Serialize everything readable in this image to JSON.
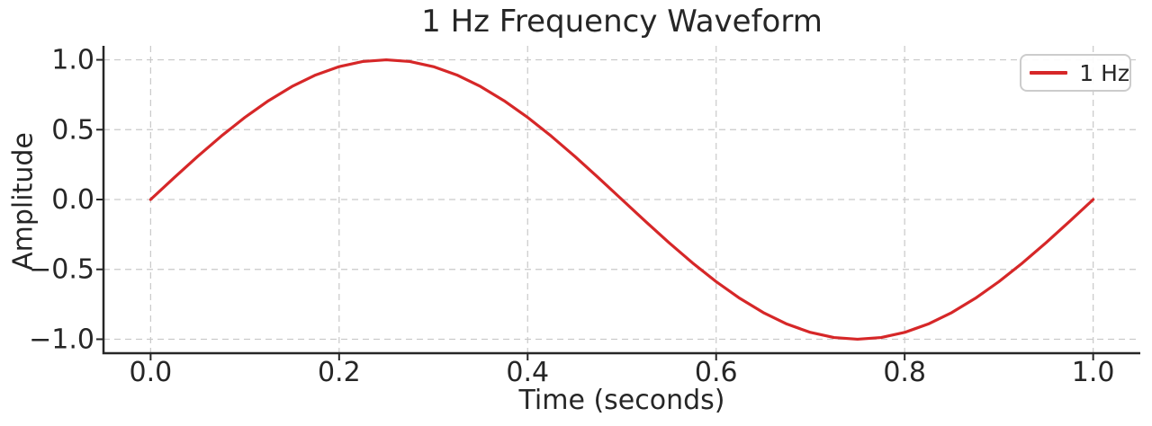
{
  "chart_data": {
    "type": "line",
    "title": "1 Hz Frequency Waveform",
    "xlabel": "Time (seconds)",
    "ylabel": "Amplitude",
    "xlim": [
      -0.05,
      1.05
    ],
    "ylim": [
      -1.1,
      1.1
    ],
    "grid": true,
    "grid_style": "dashed",
    "x_ticks": {
      "values": [
        0.0,
        0.2,
        0.4,
        0.6,
        0.8,
        1.0
      ],
      "labels": [
        "0.0",
        "0.2",
        "0.4",
        "0.6",
        "0.8",
        "1.0"
      ]
    },
    "y_ticks": {
      "values": [
        1.0,
        0.5,
        0.0,
        -0.5,
        -1.0
      ],
      "labels": [
        "1.0",
        "0.5",
        "0.0",
        "−0.5",
        "−1.0"
      ]
    },
    "legend": {
      "position": "upper right",
      "entries": [
        {
          "label": "1 Hz",
          "color": "#d62728"
        }
      ]
    },
    "series": [
      {
        "name": "1 Hz",
        "color": "#d62728",
        "x": [
          0.0,
          0.025,
          0.05,
          0.075,
          0.1,
          0.125,
          0.15,
          0.175,
          0.2,
          0.225,
          0.25,
          0.275,
          0.3,
          0.325,
          0.35,
          0.375,
          0.4,
          0.425,
          0.45,
          0.475,
          0.5,
          0.525,
          0.55,
          0.575,
          0.6,
          0.625,
          0.65,
          0.675,
          0.7,
          0.725,
          0.75,
          0.775,
          0.8,
          0.825,
          0.85,
          0.875,
          0.9,
          0.925,
          0.95,
          0.975,
          1.0
        ],
        "y": [
          0.0,
          0.1564,
          0.309,
          0.454,
          0.5878,
          0.7071,
          0.809,
          0.891,
          0.9511,
          0.9877,
          1.0,
          0.9877,
          0.9511,
          0.891,
          0.809,
          0.7071,
          0.5878,
          0.454,
          0.309,
          0.1564,
          0.0,
          -0.1564,
          -0.309,
          -0.454,
          -0.5878,
          -0.7071,
          -0.809,
          -0.891,
          -0.9511,
          -0.9877,
          -1.0,
          -0.9877,
          -0.9511,
          -0.891,
          -0.809,
          -0.7071,
          -0.5878,
          -0.454,
          -0.309,
          -0.1564,
          0.0
        ]
      }
    ],
    "colors": {
      "line": "#d62728",
      "grid": "#c9c9c9",
      "text": "#262626",
      "spine": "#262626",
      "legend_border": "#cccccc",
      "background": "#ffffff"
    }
  }
}
